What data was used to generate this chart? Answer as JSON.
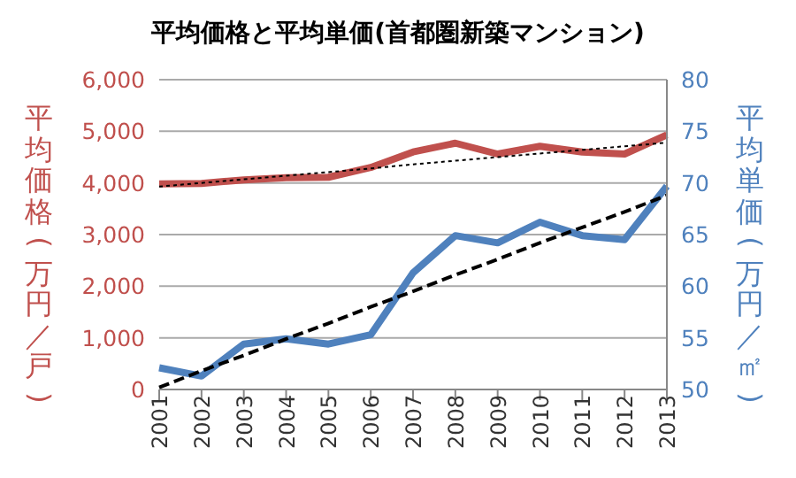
{
  "chart_data": {
    "type": "line",
    "title": "平均価格と平均単価(首都圏新築マンション)",
    "ylabel": "平均価格(万円／戸)",
    "y2label": "平均単価(万円／㎡)",
    "categories": [
      "2001",
      "2002",
      "2003",
      "2004",
      "2005",
      "2006",
      "2007",
      "2008",
      "2009",
      "2010",
      "2011",
      "2012",
      "2013"
    ],
    "series": [
      {
        "color": "#c0504d",
        "values": [
          3980,
          3990,
          4060,
          4100,
          4110,
          4300,
          4600,
          4770,
          4560,
          4710,
          4600,
          4560,
          4930
        ]
      },
      {
        "color": "#4f81bd",
        "axis": "y2",
        "values": [
          52.1,
          51.3,
          54.4,
          54.9,
          54.4,
          55.3,
          61.3,
          64.9,
          64.2,
          66.2,
          64.9,
          64.5,
          69.7
        ]
      },
      {
        "color": "#000000",
        "line_style": "dotted",
        "values": [
          3930,
          4000,
          4070,
          4140,
          4210,
          4280,
          4360,
          4430,
          4500,
          4570,
          4640,
          4710,
          4780
        ]
      },
      {
        "color": "#000000",
        "axis": "y2",
        "line_style": "dashed",
        "values": [
          50.2,
          51.8,
          53.3,
          54.9,
          56.4,
          58.0,
          59.5,
          61.1,
          62.6,
          64.2,
          65.7,
          67.2,
          68.8
        ]
      }
    ],
    "ylim": [
      0,
      6000
    ],
    "yticks": [
      {
        "value": 0,
        "label": "0"
      },
      {
        "value": 1000,
        "label": "1,000"
      },
      {
        "value": 2000,
        "label": "2,000"
      },
      {
        "value": 3000,
        "label": "3,000"
      },
      {
        "value": 4000,
        "label": "4,000"
      },
      {
        "value": 5000,
        "label": "5,000"
      },
      {
        "value": 6000,
        "label": "6,000"
      }
    ],
    "y2lim": [
      50,
      80
    ],
    "y2ticks": [
      50,
      55,
      60,
      65,
      70,
      75,
      80
    ],
    "grid": "y",
    "marker": "none"
  }
}
